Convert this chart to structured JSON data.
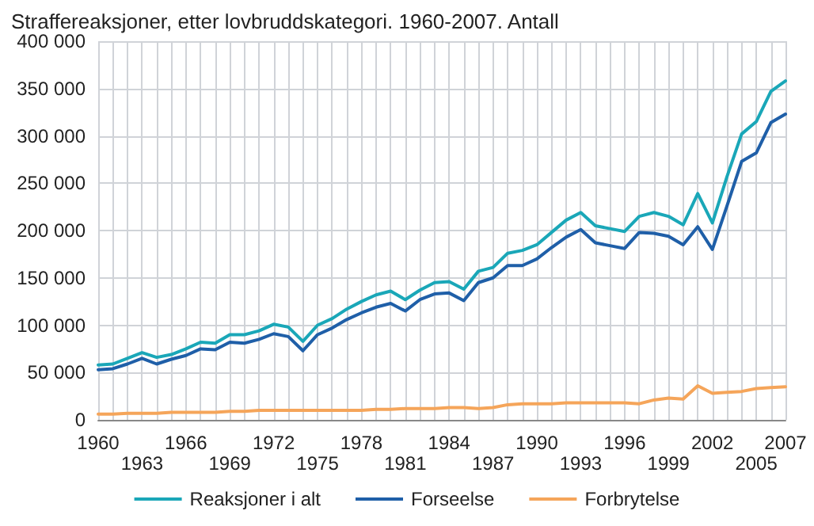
{
  "chart_data": {
    "type": "line",
    "title": "Straffereaksjoner, etter lovbruddskategori. 1960-2007. Antall",
    "categories": [
      "1960",
      null,
      null,
      "1963",
      null,
      null,
      "1966",
      null,
      null,
      "1969",
      null,
      null,
      "1972",
      null,
      null,
      "1975",
      null,
      null,
      "1978",
      null,
      null,
      "1981",
      null,
      null,
      "1984",
      null,
      null,
      "1987",
      null,
      null,
      "1990",
      null,
      null,
      "1993",
      null,
      null,
      "1996",
      null,
      null,
      "1999",
      null,
      null,
      "2002",
      null,
      null,
      "2005",
      null,
      "2007"
    ],
    "series": [
      {
        "name": "Reaksjoner i alt",
        "color": "#1aa7b8",
        "values": [
          58000,
          59000,
          65000,
          71000,
          66000,
          69000,
          75000,
          82000,
          81000,
          90000,
          90000,
          94000,
          101000,
          98000,
          83000,
          100000,
          107000,
          117000,
          125000,
          132000,
          136000,
          127000,
          137000,
          145000,
          146000,
          138000,
          157000,
          161000,
          176000,
          179000,
          185000,
          198000,
          211000,
          219000,
          205000,
          202000,
          199000,
          215000,
          219000,
          215000,
          206000,
          239000,
          208000,
          257000,
          302000,
          315000,
          347000,
          358000
        ]
      },
      {
        "name": "Forseelse",
        "color": "#1f5fa8",
        "values": [
          53000,
          54000,
          59000,
          65000,
          59000,
          64000,
          68000,
          75000,
          74000,
          82000,
          81000,
          85000,
          91000,
          88000,
          73000,
          90000,
          97000,
          106000,
          113000,
          119000,
          123000,
          115000,
          127000,
          133000,
          134000,
          126000,
          145000,
          150000,
          163000,
          163000,
          170000,
          182000,
          193000,
          201000,
          187000,
          184000,
          181000,
          198000,
          197000,
          194000,
          185000,
          204000,
          180000,
          226000,
          273000,
          282000,
          314000,
          323000
        ]
      },
      {
        "name": "Forbrytelse",
        "color": "#f5a55a",
        "values": [
          6000,
          6000,
          7000,
          7000,
          7000,
          8000,
          8000,
          8000,
          8000,
          9000,
          9000,
          10000,
          10000,
          10000,
          10000,
          10000,
          10000,
          10000,
          10000,
          11000,
          11000,
          12000,
          12000,
          12000,
          13000,
          13000,
          12000,
          13000,
          16000,
          17000,
          17000,
          17000,
          18000,
          18000,
          18000,
          18000,
          18000,
          17000,
          21000,
          23000,
          22000,
          36000,
          28000,
          29000,
          30000,
          33000,
          34000,
          35000
        ]
      }
    ],
    "ylim": [
      0,
      400000
    ],
    "yticks": [
      {
        "value": 0,
        "label": "0"
      },
      {
        "value": 50000,
        "label": "50 000"
      },
      {
        "value": 100000,
        "label": "100 000"
      },
      {
        "value": 150000,
        "label": "150 000"
      },
      {
        "value": 200000,
        "label": "200 000"
      },
      {
        "value": 250000,
        "label": "250 000"
      },
      {
        "value": 300000,
        "label": "300 000"
      },
      {
        "value": 350000,
        "label": "350 000"
      },
      {
        "value": 400000,
        "label": "400 000"
      }
    ],
    "grid": true,
    "legend": "bottom",
    "marker": "none",
    "line_style": "solid"
  }
}
